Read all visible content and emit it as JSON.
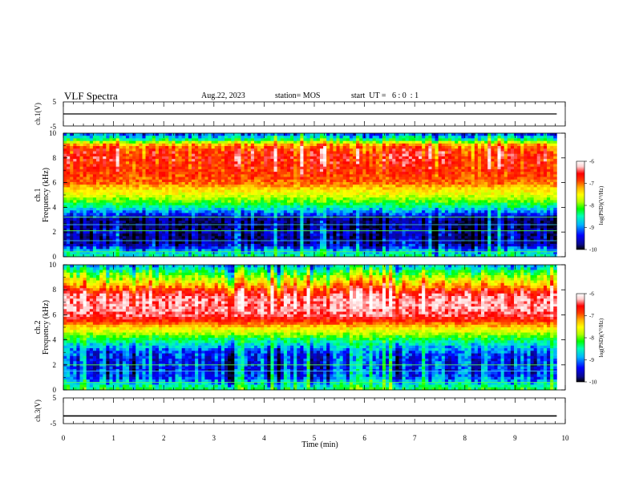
{
  "header": {
    "title": "VLF Spectra",
    "date": "Aug.22, 2023",
    "station": "station= MOS",
    "start_ut": "start  UT =   6 : 0  : 1"
  },
  "colors": {
    "axis": "#000000",
    "colormap": [
      "#000000",
      "#0a0a8c",
      "#0000ff",
      "#00b4ff",
      "#00ffb4",
      "#00ff00",
      "#b4ff00",
      "#ffff00",
      "#ffb400",
      "#ff3c00",
      "#ff0000",
      "#ffd0d0",
      "#ffffff"
    ],
    "trace": "#000000",
    "line_green": "#50ff50",
    "line_cyan": "#40d8ff"
  },
  "chart_data": [
    {
      "type": "line",
      "panel": "ch.1 waveform",
      "ylabel": "ch.1(V)",
      "ylim": [
        -5,
        5
      ],
      "y_ticks": [
        "5",
        "-5"
      ],
      "series": [
        {
          "values": [
            0,
            0,
            0,
            0,
            0,
            0,
            0,
            0,
            0,
            0,
            0
          ]
        }
      ],
      "x": [
        0,
        1,
        2,
        3,
        4,
        5,
        6,
        7,
        8,
        9,
        9.83
      ]
    },
    {
      "type": "heatmap",
      "panel": "ch.1 spectrogram",
      "ylabel": "ch.1\nFrequency (kHz)",
      "xlim": [
        0,
        10
      ],
      "ylim": [
        0,
        10
      ],
      "x_data_end": 9.83,
      "y_ticks": [
        "0",
        "2",
        "4",
        "6",
        "8",
        "10"
      ],
      "band_profile_khz": [
        0,
        0.5,
        1,
        1.5,
        2,
        2.5,
        3,
        3.5,
        4,
        4.5,
        5,
        5.5,
        6,
        6.5,
        7,
        7.5,
        8,
        8.5,
        9,
        9.5,
        10
      ],
      "band_profile_log_psd": [
        -8.6,
        -9.0,
        -9.6,
        -9.7,
        -9.6,
        -9.8,
        -9.7,
        -9.2,
        -8.7,
        -8.2,
        -7.8,
        -7.5,
        -7.1,
        -7.0,
        -6.9,
        -6.9,
        -6.8,
        -6.9,
        -7.2,
        -8.6,
        -9.3
      ],
      "horizontal_lines_khz": [
        0.4,
        1.3,
        2.1,
        2.6,
        3.2
      ],
      "colorbar": {
        "label": "log(PSD)(V²/Hz)",
        "ticks": [
          "-6",
          "-7",
          "-8",
          "-9",
          "-10"
        ],
        "range": [
          -10,
          -6
        ]
      }
    },
    {
      "type": "heatmap",
      "panel": "ch.2 spectrogram",
      "ylabel": "ch.2\nFrequency (kHz)",
      "xlim": [
        0,
        10
      ],
      "ylim": [
        0,
        10
      ],
      "x_data_end": 9.83,
      "y_ticks": [
        "0",
        "2",
        "4",
        "6",
        "8",
        "10"
      ],
      "band_profile_khz": [
        0,
        0.5,
        1,
        1.5,
        2,
        2.5,
        3,
        3.5,
        4,
        4.5,
        5,
        5.5,
        6,
        6.5,
        7,
        7.5,
        8,
        8.5,
        9,
        9.5,
        10
      ],
      "band_profile_log_psd": [
        -8.4,
        -8.8,
        -9.2,
        -9.3,
        -9.3,
        -9.3,
        -9.2,
        -8.9,
        -8.5,
        -8.0,
        -7.5,
        -6.9,
        -6.5,
        -6.4,
        -6.4,
        -6.5,
        -6.9,
        -7.5,
        -8.0,
        -8.5,
        -9.0
      ],
      "horizontal_lines_khz": [
        0.6,
        1.5,
        2.0
      ],
      "colorbar": {
        "label": "log(PSD)(V²/Hz)",
        "ticks": [
          "-6",
          "-7",
          "-8",
          "-9",
          "-10"
        ],
        "range": [
          -10,
          -6
        ]
      }
    },
    {
      "type": "line",
      "panel": "ch.3 waveform",
      "ylabel": "ch.3(V)",
      "xlabel": "Time  (min)",
      "xlim": [
        0,
        10
      ],
      "ylim": [
        -5,
        5
      ],
      "y_ticks": [
        "5",
        "-5"
      ],
      "x_ticks": [
        "0",
        "1",
        "2",
        "3",
        "4",
        "5",
        "6",
        "7",
        "8",
        "9",
        "10"
      ],
      "series": [
        {
          "values": [
            -2,
            -2,
            -2,
            -2,
            -2,
            -2,
            -2,
            -2,
            -2,
            -2,
            -2
          ]
        }
      ],
      "x": [
        0,
        1,
        2,
        3,
        4,
        5,
        6,
        7,
        8,
        9,
        9.83
      ]
    }
  ]
}
